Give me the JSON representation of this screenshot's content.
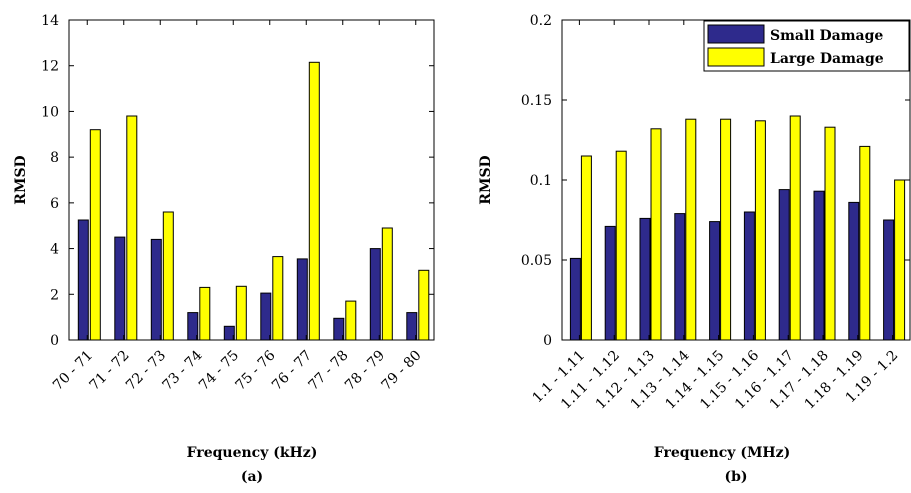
{
  "chart_data": [
    {
      "type": "bar",
      "xlabel": "Frequency (kHz)",
      "ylabel": "RMSD",
      "subplot_label": "(a)",
      "ylim": [
        0,
        14
      ],
      "yticks": [
        "0",
        "2",
        "4",
        "6",
        "8",
        "10",
        "12",
        "14"
      ],
      "categories": [
        "70 - 71",
        "71 - 72",
        "72 - 73",
        "73 - 74",
        "74 - 75",
        "75 - 76",
        "76 - 77",
        "77 - 78",
        "78 - 79",
        "79 - 80"
      ],
      "series": [
        {
          "name": "Small Damage",
          "color": "#2e2a8c",
          "values": [
            5.25,
            4.5,
            4.4,
            1.2,
            0.6,
            2.05,
            3.55,
            0.95,
            4.0,
            1.2
          ]
        },
        {
          "name": "Large Damage",
          "color": "#ffff00",
          "values": [
            9.2,
            9.8,
            5.6,
            2.3,
            2.35,
            3.65,
            12.15,
            1.7,
            4.9,
            3.05
          ]
        }
      ],
      "legend": "none",
      "grid": false
    },
    {
      "type": "bar",
      "xlabel": "Frequency (MHz)",
      "ylabel": "RMSD",
      "subplot_label": "(b)",
      "ylim": [
        0,
        0.2
      ],
      "yticks": [
        "0",
        "0.05",
        "0.1",
        "0.15",
        "0.2"
      ],
      "categories": [
        "1.1 - 1.11",
        "1.11 - 1.12",
        "1.12 - 1.13",
        "1.13 - 1.14",
        "1.14 - 1.15",
        "1.15 - 1.16",
        "1.16 - 1.17",
        "1.17 - 1.18",
        "1.18 - 1.19",
        "1.19 - 1.2"
      ],
      "series": [
        {
          "name": "Small Damage",
          "color": "#2e2a8c",
          "values": [
            0.051,
            0.071,
            0.076,
            0.079,
            0.074,
            0.08,
            0.094,
            0.093,
            0.086,
            0.075
          ]
        },
        {
          "name": "Large Damage",
          "color": "#ffff00",
          "values": [
            0.115,
            0.118,
            0.132,
            0.138,
            0.138,
            0.137,
            0.14,
            0.133,
            0.121,
            0.1
          ]
        }
      ],
      "legend": "top-right",
      "grid": false
    }
  ]
}
